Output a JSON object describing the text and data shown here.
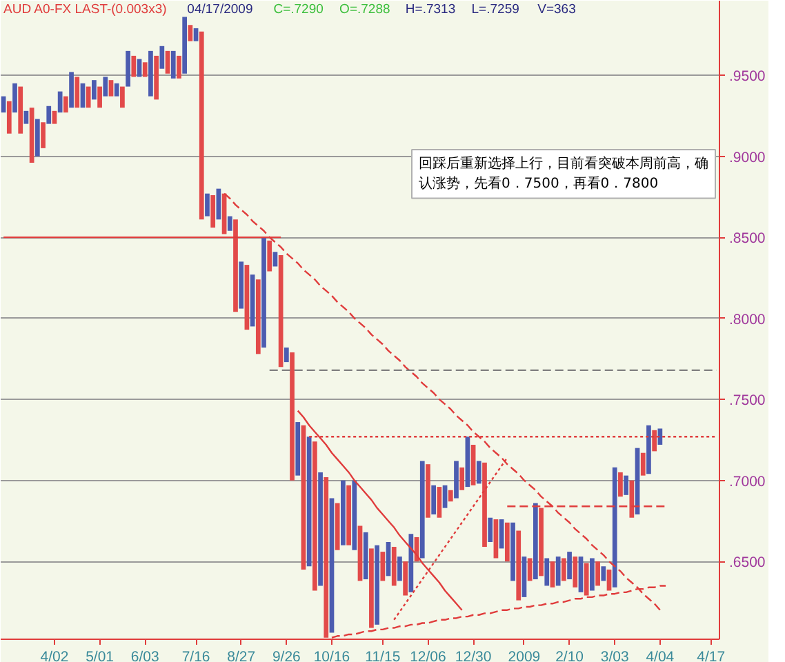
{
  "chart_data": {
    "type": "bar",
    "title": "AUD A0-FX LAST-(0.003x3)",
    "subtitle": "04/17/2009  C=.7290  O=.7288  H=.7313  L=.7259  V=363",
    "annotations": [
      "回踩后重新选择上行，目前看突破本周前高，确认涨势，先看0．7500，再看0．7800"
    ],
    "categories": [
      null,
      null,
      null,
      null,
      null,
      null,
      null,
      null,
      null,
      "4/02",
      null,
      null,
      null,
      null,
      null,
      null,
      null,
      "5/01",
      null,
      null,
      null,
      null,
      null,
      null,
      null,
      "6/03",
      null,
      null,
      null,
      null,
      null,
      null,
      null,
      null,
      "7/16",
      null,
      null,
      null,
      null,
      null,
      null,
      null,
      "8/27",
      null,
      null,
      null,
      null,
      null,
      null,
      null,
      "9/26",
      null,
      null,
      null,
      null,
      null,
      null,
      null,
      "10/16",
      null,
      null,
      null,
      null,
      null,
      null,
      null,
      null,
      "11/15",
      null,
      null,
      null,
      null,
      null,
      null,
      null,
      "12/06",
      null,
      null,
      null,
      null,
      null,
      null,
      null,
      "12/30",
      null,
      null,
      null,
      null,
      null,
      null,
      null,
      null,
      "2009",
      null,
      null,
      null,
      null,
      null,
      null,
      null,
      "2/10",
      null,
      null,
      null,
      null,
      null,
      null,
      null,
      "3/03",
      null,
      null,
      null,
      null,
      null,
      null,
      null,
      "4/04",
      null,
      null,
      null,
      null,
      null,
      null,
      null,
      null,
      "4/17",
      null
    ],
    "ylim": [
      0.602,
      0.996
    ],
    "yticks": [
      {
        "value": 0.65,
        "label": ".6500"
      },
      {
        "value": 0.7,
        "label": ".7000"
      },
      {
        "value": 0.75,
        "label": ".7500"
      },
      {
        "value": 0.8,
        "label": ".8000"
      },
      {
        "value": 0.85,
        "label": ".8500"
      },
      {
        "value": 0.9,
        "label": ".9000"
      },
      {
        "value": 0.95,
        "label": ".9500"
      }
    ],
    "grid": "y",
    "series": [
      {
        "values": [
          0.01,
          0.02,
          0.018,
          0.029,
          0.008,
          0.034,
          0.023,
          0.016,
          0.011,
          0.008,
          0.013,
          0.01,
          0.022,
          0.019,
          0.015,
          0.013,
          0.012,
          0.013,
          0.012,
          0.01,
          0.008,
          0.013,
          0.022,
          0.013,
          0.011,
          0.009,
          0.028,
          0.027,
          0.014,
          0.014,
          0.017,
          0.014,
          0.035,
          0.01,
          0.008,
          0.116,
          0.014,
          0.02,
          0.019,
          0.025,
          0.009,
          0.057,
          0.029,
          0.04,
          0.032,
          0.046,
          0.068,
          0.019,
          0.009,
          0.069,
          0.009,
          0.079,
          0.033,
          0.089,
          0.08,
          0.092,
          0.07,
          0.099,
          0.083,
          0.029,
          0.04,
          0.037,
          0.043,
          0.034,
          0.029,
          0.049,
          0.049,
          0.018,
          0.021,
          0.024,
          0.015,
          0.021,
          0.036,
          0.015,
          0.06,
          0.033,
          0.018,
          0.019,
          0.014,
          0.007,
          0.023,
          0.014,
          0.031,
          0.025,
          0.014,
          0.052,
          0.015,
          0.024,
          0.018,
          0.024,
          0.036,
          0.043,
          0.025,
          0.014,
          0.047,
          0.042,
          0.017,
          0.016,
          0.018,
          0.014,
          0.017,
          0.019,
          0.022,
          0.02,
          0.02,
          0.015,
          0.009,
          0.013,
          0.074,
          0.015,
          0.012,
          0.023,
          0.041,
          0.014,
          0.03,
          0.013,
          0.01,
          null,
          null,
          null,
          null,
          null,
          null,
          null,
          null,
          null,
          null
        ],
        "base": [
          0.927,
          0.914,
          0.927,
          0.914,
          0.92,
          0.896,
          0.9,
          0.905,
          0.92,
          0.92,
          0.927,
          0.927,
          0.93,
          0.93,
          0.93,
          0.93,
          0.935,
          0.93,
          0.937,
          0.937,
          0.937,
          0.93,
          0.943,
          0.949,
          0.949,
          0.949,
          0.937,
          0.935,
          0.954,
          0.951,
          0.948,
          0.948,
          0.951,
          0.971,
          0.971,
          0.861,
          0.863,
          0.856,
          0.861,
          0.852,
          0.854,
          0.804,
          0.806,
          0.793,
          0.795,
          0.778,
          0.782,
          0.829,
          0.832,
          0.77,
          0.773,
          0.7,
          0.703,
          0.645,
          0.647,
          0.632,
          0.635,
          0.603,
          0.606,
          0.657,
          0.66,
          0.66,
          0.657,
          0.638,
          0.639,
          0.609,
          0.611,
          0.638,
          0.641,
          0.635,
          0.638,
          0.629,
          0.631,
          0.65,
          0.652,
          0.677,
          0.679,
          0.677,
          0.683,
          0.687,
          0.689,
          0.694,
          0.696,
          0.697,
          0.698,
          0.659,
          0.662,
          0.652,
          0.658,
          0.65,
          0.638,
          0.626,
          0.628,
          0.638,
          0.639,
          0.641,
          0.635,
          0.634,
          0.635,
          0.638,
          0.639,
          0.634,
          0.631,
          0.629,
          0.632,
          0.635,
          0.638,
          0.632,
          0.634,
          0.69,
          0.691,
          0.677,
          0.679,
          0.703,
          0.704,
          0.718,
          0.722,
          null,
          null,
          null,
          null,
          null,
          null,
          null,
          null,
          null,
          null
        ],
        "colors": [
          "#4c5cb0",
          "#e24a4a",
          "#4c5cb0",
          "#e24a4a",
          "#4c5cb0",
          "#e24a4a",
          "#4c5cb0",
          "#e24a4a",
          "#4c5cb0",
          "#e24a4a",
          "#4c5cb0",
          "#e24a4a",
          "#4c5cb0",
          "#e24a4a",
          "#4c5cb0",
          "#e24a4a",
          "#4c5cb0",
          "#e24a4a",
          "#4c5cb0",
          "#e24a4a",
          "#4c5cb0",
          "#e24a4a",
          "#4c5cb0",
          "#e24a4a",
          "#4c5cb0",
          "#e24a4a",
          "#4c5cb0",
          "#e24a4a",
          "#4c5cb0",
          "#e24a4a",
          "#4c5cb0",
          "#e24a4a",
          "#4c5cb0",
          "#e24a4a",
          "#4c5cb0",
          "#e24a4a",
          "#4c5cb0",
          "#e24a4a",
          "#4c5cb0",
          "#e24a4a",
          "#4c5cb0",
          "#e24a4a",
          "#4c5cb0",
          "#e24a4a",
          "#4c5cb0",
          "#e24a4a",
          "#4c5cb0",
          "#e24a4a",
          "#4c5cb0",
          "#e24a4a",
          "#4c5cb0",
          "#e24a4a",
          "#4c5cb0",
          "#e24a4a",
          "#4c5cb0",
          "#e24a4a",
          "#4c5cb0",
          "#e24a4a",
          "#4c5cb0",
          "#e24a4a",
          "#4c5cb0",
          "#e24a4a",
          "#4c5cb0",
          "#e24a4a",
          "#4c5cb0",
          "#e24a4a",
          "#4c5cb0",
          "#e24a4a",
          "#4c5cb0",
          "#e24a4a",
          "#4c5cb0",
          "#e24a4a",
          "#4c5cb0",
          "#e24a4a",
          "#4c5cb0",
          "#e24a4a",
          "#4c5cb0",
          "#e24a4a",
          "#4c5cb0",
          "#e24a4a",
          "#4c5cb0",
          "#e24a4a",
          "#4c5cb0",
          "#e24a4a",
          "#4c5cb0",
          "#e24a4a",
          "#4c5cb0",
          "#e24a4a",
          "#4c5cb0",
          "#e24a4a",
          "#4c5cb0",
          "#e24a4a",
          "#4c5cb0",
          "#e24a4a",
          "#4c5cb0",
          "#e24a4a",
          "#4c5cb0",
          "#e24a4a",
          "#4c5cb0",
          "#e24a4a",
          "#4c5cb0",
          "#e24a4a",
          "#4c5cb0",
          "#e24a4a",
          "#4c5cb0",
          "#e24a4a",
          "#4c5cb0",
          "#e24a4a",
          "#4c5cb0",
          "#e24a4a",
          "#4c5cb0",
          "#e24a4a",
          "#4c5cb0",
          "#e24a4a",
          "#4c5cb0",
          "#e24a4a",
          "#4c5cb0",
          null,
          null,
          null,
          null,
          null,
          null,
          null,
          null,
          null,
          null
        ]
      },
      {
        "type": "line",
        "color": "#e03c3c",
        "line_style": "solid",
        "values": [
          0.85,
          0.85,
          0.85,
          0.85,
          0.85,
          0.85,
          0.85,
          0.85,
          0.85,
          0.85,
          0.85,
          0.85,
          0.85,
          0.85,
          0.85,
          0.85,
          0.85,
          0.85,
          0.85,
          0.85,
          0.85,
          0.85,
          0.85,
          0.85,
          0.85,
          0.85,
          0.85,
          0.85,
          0.85,
          0.85,
          0.85,
          0.85,
          0.85,
          0.85,
          0.85,
          0.85,
          0.85,
          0.85,
          0.85,
          0.85,
          0.85,
          0.85,
          0.85,
          0.85,
          0.85,
          0.85,
          0.85,
          0.85,
          0.85,
          0.85,
          null,
          null,
          null,
          null,
          null,
          null,
          null,
          null,
          null,
          null,
          null,
          null,
          null,
          null,
          null,
          null,
          null,
          null,
          null,
          null,
          null,
          null,
          null,
          null,
          null,
          null,
          null,
          null,
          null,
          null,
          null,
          null,
          null,
          null,
          null,
          null,
          null,
          null,
          null,
          null,
          null,
          null,
          null,
          null,
          null,
          null,
          null,
          null,
          null,
          null,
          null,
          null,
          null,
          null,
          null,
          null,
          null,
          null,
          null,
          null,
          null,
          null,
          null,
          null,
          null,
          null,
          null,
          null,
          null,
          null,
          null,
          null,
          null,
          null,
          null,
          null,
          null
        ]
      },
      {
        "type": "line",
        "color": "#e03c3c",
        "line_style": "dashed",
        "values": [
          null,
          null,
          null,
          null,
          null,
          null,
          null,
          null,
          null,
          null,
          null,
          null,
          null,
          null,
          null,
          null,
          null,
          null,
          null,
          null,
          null,
          null,
          null,
          null,
          null,
          null,
          null,
          null,
          null,
          null,
          null,
          null,
          null,
          null,
          null,
          null,
          null,
          null,
          null,
          0.877,
          0.874,
          0.87,
          0.867,
          0.864,
          0.86,
          0.857,
          0.854,
          0.85,
          0.847,
          0.844,
          0.84,
          0.837,
          0.834,
          0.83,
          0.827,
          0.824,
          0.82,
          0.817,
          0.814,
          0.81,
          0.807,
          0.804,
          0.8,
          0.797,
          0.794,
          0.79,
          0.787,
          0.784,
          0.78,
          0.777,
          0.774,
          0.77,
          0.767,
          0.764,
          0.76,
          0.757,
          0.754,
          0.75,
          0.747,
          0.744,
          0.74,
          0.737,
          0.734,
          0.73,
          0.727,
          0.724,
          0.72,
          0.717,
          0.714,
          0.71,
          0.707,
          0.704,
          0.7,
          0.697,
          0.694,
          0.69,
          0.687,
          0.684,
          0.68,
          0.677,
          0.674,
          0.67,
          0.667,
          0.664,
          0.66,
          0.657,
          0.654,
          0.65,
          0.647,
          0.644,
          0.64,
          0.637,
          0.634,
          0.63,
          0.627,
          0.624,
          0.62,
          null,
          null,
          null,
          null,
          null,
          null,
          null,
          null,
          null,
          null
        ]
      },
      {
        "type": "line",
        "color": "#e03c3c",
        "line_style": "solid",
        "values": [
          null,
          null,
          null,
          null,
          null,
          null,
          null,
          null,
          null,
          null,
          null,
          null,
          null,
          null,
          null,
          null,
          null,
          null,
          null,
          null,
          null,
          null,
          null,
          null,
          null,
          null,
          null,
          null,
          null,
          null,
          null,
          null,
          null,
          null,
          null,
          null,
          null,
          null,
          null,
          null,
          null,
          null,
          null,
          null,
          null,
          null,
          null,
          null,
          null,
          null,
          null,
          null,
          0.743,
          0.739,
          0.734,
          0.73,
          0.726,
          0.722,
          0.717,
          0.713,
          0.709,
          0.705,
          0.7,
          0.696,
          0.692,
          0.688,
          0.683,
          0.679,
          0.675,
          0.671,
          0.666,
          0.662,
          0.658,
          0.654,
          0.649,
          0.645,
          0.641,
          0.637,
          0.632,
          0.628,
          0.624,
          0.62,
          null,
          null,
          null,
          null,
          null,
          null,
          null,
          null,
          null,
          null,
          null,
          null,
          null,
          null,
          null,
          null,
          null,
          null,
          null,
          null,
          null,
          null,
          null,
          null,
          null,
          null,
          null,
          null,
          null,
          null,
          null,
          null,
          null,
          null,
          null,
          null,
          null,
          null,
          null,
          null,
          null,
          null,
          null,
          null,
          null
        ]
      },
      {
        "type": "line",
        "color": "#e03c3c",
        "line_style": "dotted",
        "values": [
          null,
          null,
          null,
          null,
          null,
          null,
          null,
          null,
          null,
          null,
          null,
          null,
          null,
          null,
          null,
          null,
          null,
          null,
          null,
          null,
          null,
          null,
          null,
          null,
          null,
          null,
          null,
          null,
          null,
          null,
          null,
          null,
          null,
          null,
          null,
          null,
          null,
          null,
          null,
          null,
          null,
          null,
          null,
          null,
          null,
          null,
          null,
          null,
          null,
          null,
          null,
          null,
          null,
          null,
          null,
          null,
          null,
          null,
          null,
          null,
          null,
          null,
          null,
          null,
          null,
          null,
          null,
          null,
          null,
          0.614,
          0.619,
          0.624,
          0.629,
          0.634,
          0.639,
          0.644,
          0.649,
          0.654,
          0.659,
          0.664,
          0.669,
          0.674,
          0.679,
          0.684,
          0.689,
          0.694,
          0.699,
          0.704,
          0.709,
          0.714,
          null,
          null,
          null,
          null,
          null,
          null,
          null,
          null,
          null,
          null,
          null,
          null,
          null,
          null,
          null,
          null,
          null,
          null,
          null,
          null,
          null,
          null,
          null,
          null,
          null,
          null,
          null,
          null,
          null,
          null,
          null,
          null,
          null,
          null,
          null,
          null,
          null
        ]
      },
      {
        "type": "line",
        "color": "#e03c3c",
        "line_style": "dashed",
        "values": [
          null,
          null,
          null,
          null,
          null,
          null,
          null,
          null,
          null,
          null,
          null,
          null,
          null,
          null,
          null,
          null,
          null,
          null,
          null,
          null,
          null,
          null,
          null,
          null,
          null,
          null,
          null,
          null,
          null,
          null,
          null,
          null,
          null,
          null,
          null,
          null,
          null,
          null,
          null,
          null,
          null,
          null,
          null,
          null,
          null,
          null,
          null,
          null,
          null,
          null,
          null,
          null,
          null,
          null,
          null,
          null,
          null,
          null,
          0.603,
          0.604,
          0.604,
          0.605,
          0.605,
          0.606,
          0.607,
          0.607,
          0.608,
          0.608,
          0.609,
          0.609,
          0.61,
          0.61,
          0.611,
          0.611,
          0.612,
          0.612,
          0.613,
          0.614,
          0.614,
          0.615,
          0.615,
          0.616,
          0.616,
          0.617,
          0.617,
          0.618,
          0.618,
          0.619,
          0.62,
          0.62,
          0.621,
          0.621,
          0.622,
          0.622,
          0.623,
          0.623,
          0.624,
          0.624,
          0.625,
          0.625,
          0.626,
          0.627,
          0.627,
          0.628,
          0.628,
          0.629,
          0.629,
          0.63,
          0.63,
          0.631,
          0.631,
          0.632,
          0.633,
          0.633,
          0.634,
          0.634,
          0.635,
          0.635,
          null,
          null,
          null,
          null,
          null,
          null,
          null,
          null,
          null
        ]
      },
      {
        "type": "line",
        "color": "#e03c3c",
        "line_style": "dotted",
        "values": [
          null,
          null,
          null,
          null,
          null,
          null,
          null,
          null,
          null,
          null,
          null,
          null,
          null,
          null,
          null,
          null,
          null,
          null,
          null,
          null,
          null,
          null,
          null,
          null,
          null,
          null,
          null,
          null,
          null,
          null,
          null,
          null,
          null,
          null,
          null,
          null,
          null,
          null,
          null,
          null,
          null,
          null,
          null,
          null,
          null,
          null,
          null,
          null,
          null,
          null,
          null,
          null,
          null,
          null,
          0.727,
          0.727,
          0.727,
          0.727,
          0.727,
          0.727,
          0.727,
          0.727,
          0.727,
          0.727,
          0.727,
          0.727,
          0.727,
          0.727,
          0.727,
          0.727,
          0.727,
          0.727,
          0.727,
          0.727,
          0.727,
          0.727,
          0.727,
          0.727,
          0.727,
          0.727,
          0.727,
          0.727,
          0.727,
          0.727,
          0.727,
          0.727,
          0.727,
          0.727,
          0.727,
          0.727,
          0.727,
          0.727,
          0.727,
          0.727,
          0.727,
          0.727,
          0.727,
          0.727,
          0.727,
          0.727,
          0.727,
          0.727,
          0.727,
          0.727,
          0.727,
          0.727,
          0.727,
          0.727,
          0.727,
          0.727,
          0.727,
          0.727,
          0.727,
          0.727,
          0.727,
          0.727,
          0.727,
          0.727,
          0.727,
          0.727,
          0.727,
          0.727,
          0.727,
          0.727,
          0.727,
          0.727,
          0.727
        ]
      },
      {
        "type": "line",
        "color": "#808080",
        "line_style": "dashed",
        "values": [
          null,
          null,
          null,
          null,
          null,
          null,
          null,
          null,
          null,
          null,
          null,
          null,
          null,
          null,
          null,
          null,
          null,
          null,
          null,
          null,
          null,
          null,
          null,
          null,
          null,
          null,
          null,
          null,
          null,
          null,
          null,
          null,
          null,
          null,
          null,
          null,
          null,
          null,
          null,
          null,
          null,
          null,
          null,
          null,
          null,
          null,
          null,
          0.768,
          0.768,
          0.768,
          0.768,
          0.768,
          0.768,
          0.768,
          0.768,
          0.768,
          0.768,
          0.768,
          0.768,
          0.768,
          0.768,
          0.768,
          0.768,
          0.768,
          0.768,
          0.768,
          0.768,
          0.768,
          0.768,
          0.768,
          0.768,
          0.768,
          0.768,
          0.768,
          0.768,
          0.768,
          0.768,
          0.768,
          0.768,
          0.768,
          0.768,
          0.768,
          0.768,
          0.768,
          0.768,
          0.768,
          0.768,
          0.768,
          0.768,
          0.768,
          0.768,
          0.768,
          0.768,
          0.768,
          0.768,
          0.768,
          0.768,
          0.768,
          0.768,
          0.768,
          0.768,
          0.768,
          0.768,
          0.768,
          0.768,
          0.768,
          0.768,
          0.768,
          0.768,
          0.768,
          0.768,
          0.768,
          0.768,
          0.768,
          0.768,
          0.768,
          0.768,
          0.768,
          0.768,
          0.768,
          0.768,
          0.768,
          0.768,
          0.768,
          0.768,
          0.768,
          0.768
        ]
      },
      {
        "type": "line",
        "color": "#e03c3c",
        "line_style": "dashed",
        "values": [
          null,
          null,
          null,
          null,
          null,
          null,
          null,
          null,
          null,
          null,
          null,
          null,
          null,
          null,
          null,
          null,
          null,
          null,
          null,
          null,
          null,
          null,
          null,
          null,
          null,
          null,
          null,
          null,
          null,
          null,
          null,
          null,
          null,
          null,
          null,
          null,
          null,
          null,
          null,
          null,
          null,
          null,
          null,
          null,
          null,
          null,
          null,
          null,
          null,
          null,
          null,
          null,
          null,
          null,
          null,
          null,
          null,
          null,
          null,
          null,
          null,
          null,
          null,
          null,
          null,
          null,
          null,
          null,
          null,
          null,
          null,
          null,
          null,
          null,
          null,
          null,
          null,
          null,
          null,
          null,
          null,
          null,
          null,
          null,
          null,
          null,
          null,
          null,
          null,
          0.684,
          0.684,
          0.684,
          0.684,
          0.684,
          0.684,
          0.684,
          0.684,
          0.684,
          0.684,
          0.684,
          0.684,
          0.684,
          0.684,
          0.684,
          0.684,
          0.684,
          0.684,
          0.684,
          0.684,
          0.684,
          0.684,
          0.684,
          0.684,
          0.684,
          0.684,
          0.684,
          0.684,
          0.684,
          null,
          null,
          null,
          null,
          null,
          null,
          null,
          null,
          null
        ]
      }
    ]
  }
}
